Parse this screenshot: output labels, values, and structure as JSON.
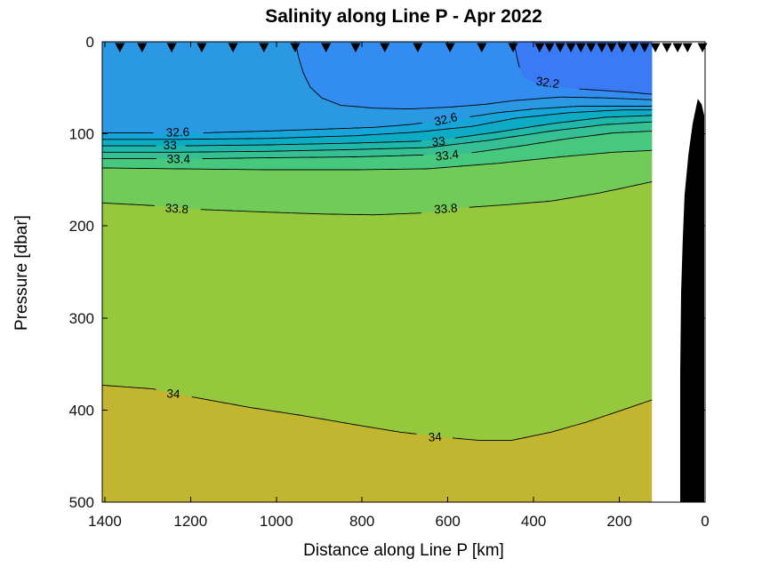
{
  "chart_data": {
    "type": "contour-filled",
    "title": "Salinity along Line P - Apr 2022",
    "xlabel": "Distance along Line P [km]",
    "ylabel": "Pressure [dbar]",
    "x_ticks": [
      1400,
      1200,
      1000,
      800,
      600,
      400,
      200,
      0
    ],
    "y_ticks": [
      0,
      100,
      200,
      300,
      400,
      500
    ],
    "xlim": [
      1406,
      0
    ],
    "ylim": [
      0,
      500
    ],
    "x_axis_reversed": true,
    "y_axis_down": true,
    "grid": false,
    "line_color": "#000000",
    "marker_symbol": "triangle-down",
    "marker_color": "#000000",
    "data_min_km": 124,
    "levels": [
      32.2,
      32.4,
      32.6,
      32.8,
      33.0,
      33.2,
      33.4,
      33.6,
      33.8,
      34.0
    ],
    "labeled_levels": [
      32.2,
      32.6,
      33,
      33.4,
      33.8,
      34
    ],
    "band_colors": [
      {
        "range": "< 32.2",
        "color": "#3A7AF5"
      },
      {
        "range": "32.2 - 32.4",
        "color": "#338CEF"
      },
      {
        "range": "32.4 - 32.6",
        "color": "#2A98E2"
      },
      {
        "range": "32.6 - 32.8",
        "color": "#16A5D9"
      },
      {
        "range": "32.8 - 33.0",
        "color": "#0DACC4"
      },
      {
        "range": "33.0 - 33.2",
        "color": "#20B6A9"
      },
      {
        "range": "33.2 - 33.4",
        "color": "#35BF92"
      },
      {
        "range": "33.4 - 33.6",
        "color": "#46C87E"
      },
      {
        "range": "33.6 - 33.8",
        "color": "#71CB58"
      },
      {
        "range": "33.8 - 34.0",
        "color": "#95C83C"
      },
      {
        "range": "> 34.0",
        "color": "#C2B52F"
      }
    ],
    "boundaries": [
      {
        "level": 32.2,
        "gaps": [
          [
            431,
            301
          ]
        ],
        "points": [
          [
            446,
            0
          ],
          [
            440,
            14
          ],
          [
            433,
            28
          ],
          [
            425,
            38
          ],
          [
            390,
            46
          ],
          [
            301,
            51
          ],
          [
            234,
            53
          ],
          [
            172,
            55
          ],
          [
            124,
            57
          ]
        ]
      },
      {
        "level": 32.4,
        "gaps": [],
        "points": [
          [
            956,
            0
          ],
          [
            948,
            17
          ],
          [
            937,
            34
          ],
          [
            921,
            49
          ],
          [
            894,
            61
          ],
          [
            850,
            69
          ],
          [
            774,
            72
          ],
          [
            691,
            73
          ],
          [
            597,
            71
          ],
          [
            514,
            68
          ],
          [
            448,
            64
          ],
          [
            338,
            60
          ],
          [
            234,
            61
          ],
          [
            124,
            63
          ]
        ]
      },
      {
        "level": 32.6,
        "gaps": [
          [
            1280,
            1176
          ],
          [
            657,
            552
          ]
        ],
        "points": [
          [
            1406,
            99
          ],
          [
            1333,
            99
          ],
          [
            1178,
            99
          ],
          [
            1022,
            97
          ],
          [
            898,
            95
          ],
          [
            774,
            93
          ],
          [
            691,
            90
          ],
          [
            605,
            85
          ],
          [
            556,
            82
          ],
          [
            483,
            77
          ],
          [
            400,
            73
          ],
          [
            297,
            70
          ],
          [
            214,
            70
          ],
          [
            124,
            70
          ]
        ]
      },
      {
        "level": 32.8,
        "gaps": [],
        "points": [
          [
            1406,
            106
          ],
          [
            1230,
            106
          ],
          [
            1022,
            105
          ],
          [
            815,
            102
          ],
          [
            670,
            98
          ],
          [
            545,
            92
          ],
          [
            442,
            83
          ],
          [
            317,
            77
          ],
          [
            193,
            74
          ],
          [
            124,
            74
          ]
        ]
      },
      {
        "level": 33.0,
        "gaps": [
          [
            1275,
            1217
          ],
          [
            655,
            587
          ]
        ],
        "points": [
          [
            1406,
            113
          ],
          [
            1288,
            113
          ],
          [
            1220,
            113
          ],
          [
            1022,
            112
          ],
          [
            815,
            110
          ],
          [
            670,
            108
          ],
          [
            591,
            105
          ],
          [
            483,
            98
          ],
          [
            359,
            89
          ],
          [
            234,
            82
          ],
          [
            124,
            80
          ]
        ]
      },
      {
        "level": 33.2,
        "gaps": [],
        "points": [
          [
            1406,
            120
          ],
          [
            1230,
            120
          ],
          [
            1022,
            119
          ],
          [
            815,
            117
          ],
          [
            649,
            115
          ],
          [
            504,
            107
          ],
          [
            359,
            97
          ],
          [
            234,
            90
          ],
          [
            124,
            87
          ]
        ]
      },
      {
        "level": 33.4,
        "gaps": [
          [
            1277,
            1178
          ],
          [
            651,
            550
          ]
        ],
        "points": [
          [
            1406,
            127
          ],
          [
            1280,
            127
          ],
          [
            1180,
            127
          ],
          [
            1022,
            126
          ],
          [
            815,
            125
          ],
          [
            657,
            123
          ],
          [
            552,
            121
          ],
          [
            442,
            114
          ],
          [
            317,
            105
          ],
          [
            214,
            99
          ],
          [
            124,
            97
          ]
        ]
      },
      {
        "level": 33.6,
        "gaps": [],
        "points": [
          [
            1406,
            137
          ],
          [
            1230,
            138
          ],
          [
            1022,
            139
          ],
          [
            815,
            139
          ],
          [
            649,
            138
          ],
          [
            483,
            132
          ],
          [
            338,
            125
          ],
          [
            214,
            120
          ],
          [
            124,
            118
          ]
        ]
      },
      {
        "level": 33.8,
        "gaps": [
          [
            1282,
            1180
          ],
          [
            655,
            554
          ]
        ],
        "points": [
          [
            1406,
            175
          ],
          [
            1284,
            178
          ],
          [
            1184,
            182
          ],
          [
            1022,
            185
          ],
          [
            898,
            187
          ],
          [
            774,
            188
          ],
          [
            662,
            186
          ],
          [
            558,
            180
          ],
          [
            463,
            177
          ],
          [
            359,
            173
          ],
          [
            255,
            165
          ],
          [
            193,
            159
          ],
          [
            124,
            152
          ]
        ]
      },
      {
        "level": 34.0,
        "gaps": [
          [
            1280,
            1201
          ],
          [
            666,
            593
          ]
        ],
        "points": [
          [
            1406,
            373
          ],
          [
            1288,
            377
          ],
          [
            1205,
            385
          ],
          [
            1064,
            397
          ],
          [
            939,
            406
          ],
          [
            815,
            416
          ],
          [
            711,
            424
          ],
          [
            597,
            430
          ],
          [
            525,
            433
          ],
          [
            452,
            433
          ],
          [
            359,
            424
          ],
          [
            276,
            413
          ],
          [
            193,
            400
          ],
          [
            124,
            389
          ]
        ]
      }
    ],
    "contour_labels": [
      {
        "text": "32.2",
        "km": 367,
        "dbar": 44,
        "rot": 8
      },
      {
        "text": "32.6",
        "km": 1230,
        "dbar": 98,
        "rot": -2
      },
      {
        "text": "32.6",
        "km": 605,
        "dbar": 84,
        "rot": -13
      },
      {
        "text": "33",
        "km": 1248,
        "dbar": 112,
        "rot": 0
      },
      {
        "text": "33",
        "km": 622,
        "dbar": 108,
        "rot": -6
      },
      {
        "text": "33.4",
        "km": 1228,
        "dbar": 127,
        "rot": 0
      },
      {
        "text": "33.4",
        "km": 602,
        "dbar": 123,
        "rot": -7
      },
      {
        "text": "33.8",
        "km": 1232,
        "dbar": 181,
        "rot": 4
      },
      {
        "text": "33.8",
        "km": 605,
        "dbar": 181,
        "rot": -4
      },
      {
        "text": "34",
        "km": 1240,
        "dbar": 382,
        "rot": 4
      },
      {
        "text": "34",
        "km": 630,
        "dbar": 429,
        "rot": -3
      }
    ],
    "station_markers_km": [
      1365,
      1313,
      1244,
      1174,
      1101,
      1029,
      956,
      884,
      815,
      747,
      670,
      595,
      521,
      448,
      386,
      363,
      338,
      313,
      290,
      266,
      241,
      218,
      193,
      166,
      141,
      116,
      89,
      64,
      41,
      6
    ],
    "bathymetry_outline": [
      [
        17,
        62
      ],
      [
        29,
        89
      ],
      [
        39,
        123
      ],
      [
        48,
        167
      ],
      [
        52,
        215
      ],
      [
        56,
        273
      ],
      [
        58,
        360
      ],
      [
        58,
        500
      ],
      [
        2,
        500
      ],
      [
        2,
        80
      ],
      [
        8,
        68
      ]
    ]
  }
}
